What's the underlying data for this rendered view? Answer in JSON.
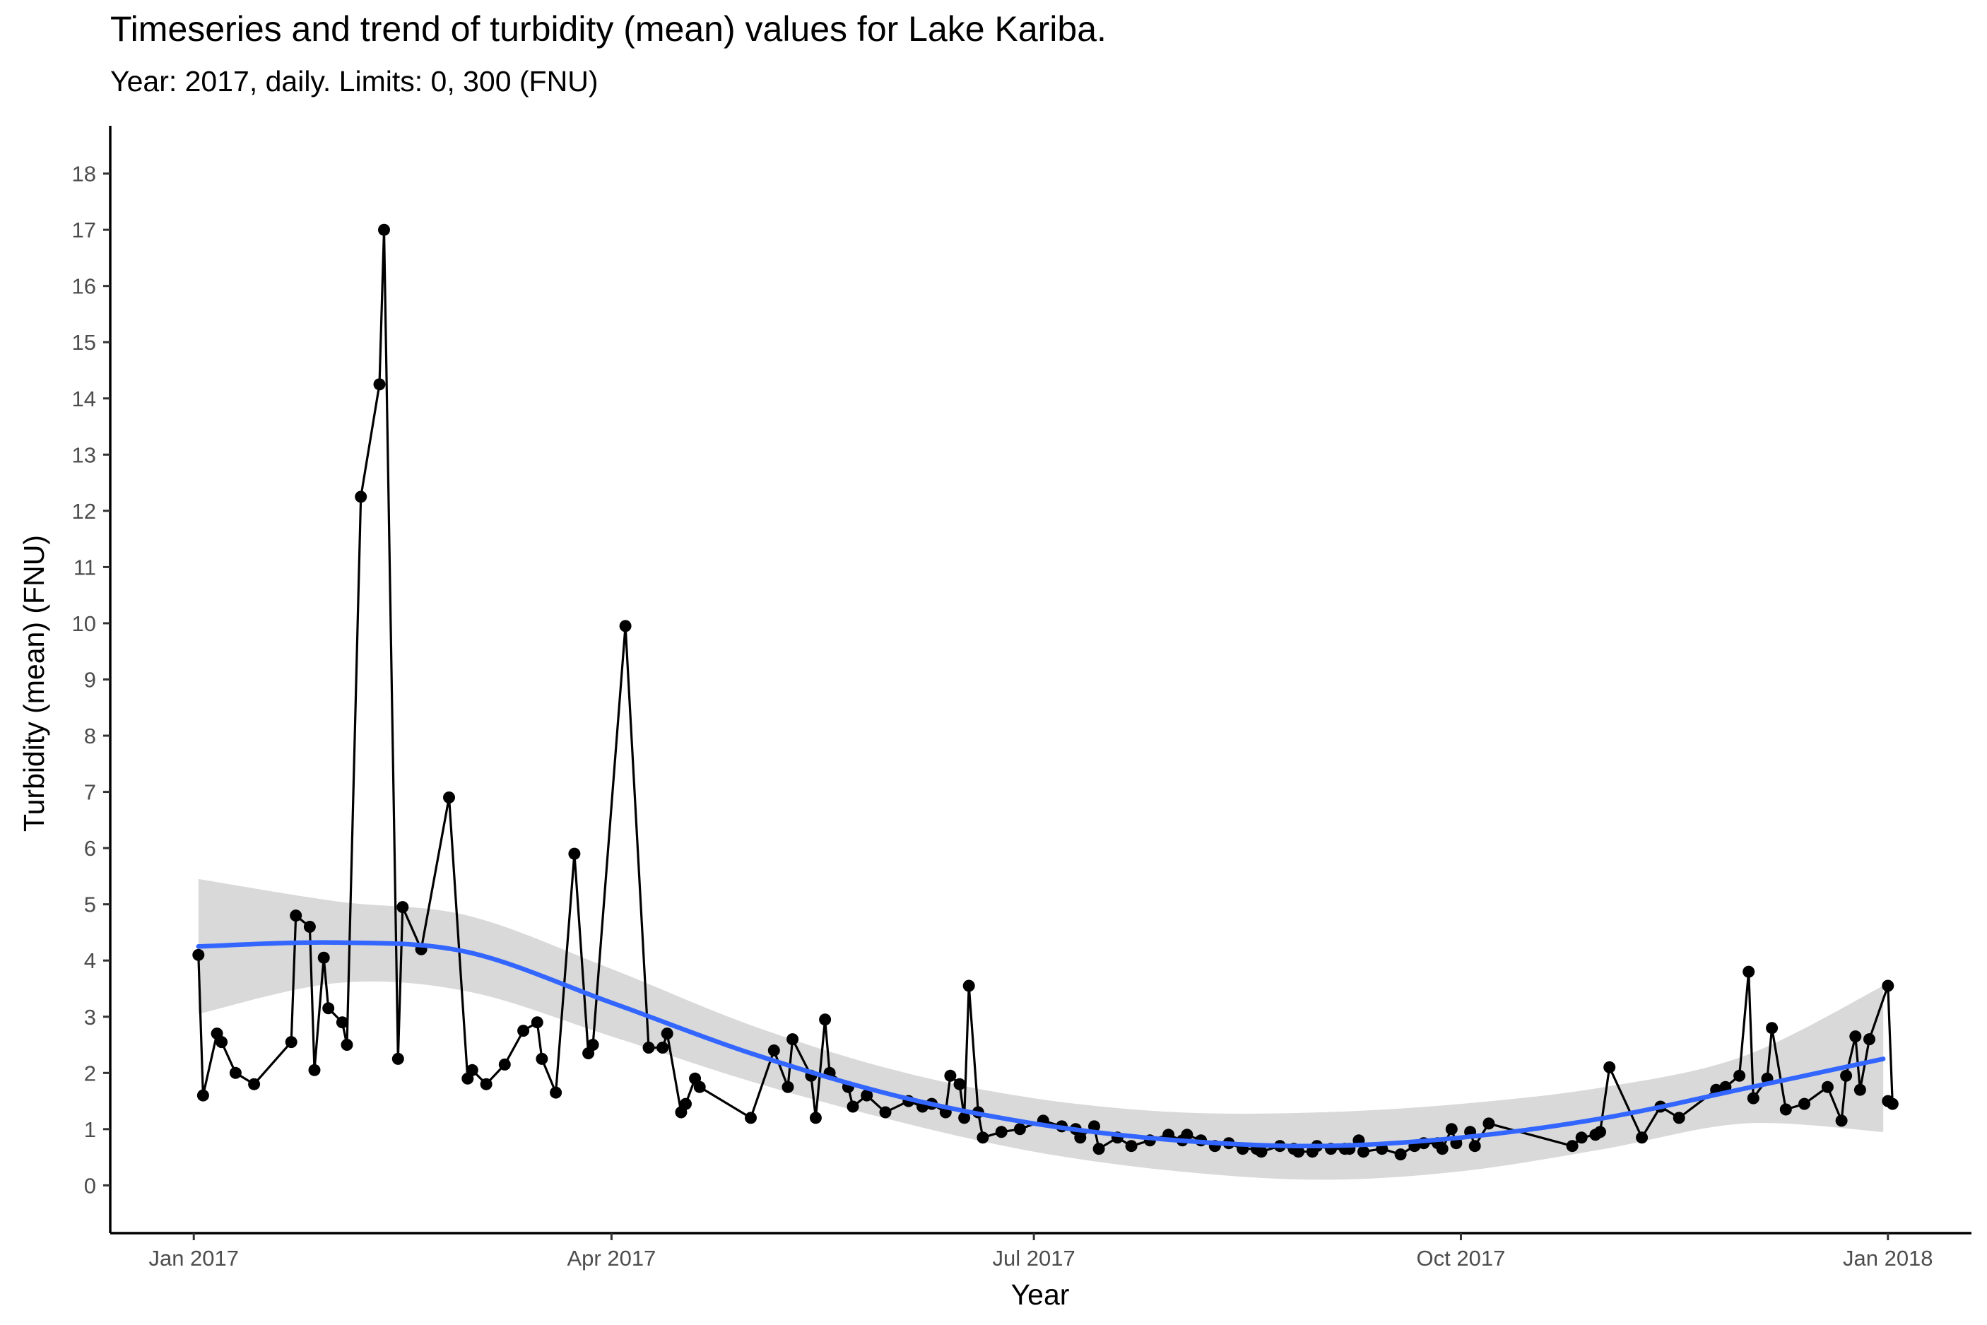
{
  "chart_data": {
    "type": "line",
    "title": "Timeseries and trend of turbidity (mean) values for Lake Kariba.",
    "subtitle": "Year: 2017, daily. Limits: 0, 300 (FNU)",
    "xlabel": "Year",
    "ylabel": "Turbidity (mean) (FNU)",
    "ylim": [
      -0.85,
      18.85
    ],
    "xlim": [
      "2016-12-14",
      "2018-01-19"
    ],
    "y_ticks": [
      0,
      1,
      2,
      3,
      4,
      5,
      6,
      7,
      8,
      9,
      10,
      11,
      12,
      13,
      14,
      15,
      16,
      17,
      18
    ],
    "x_ticks": [
      {
        "date": "2017-01-01",
        "label": "Jan 2017"
      },
      {
        "date": "2017-04-01",
        "label": "Apr 2017"
      },
      {
        "date": "2017-07-01",
        "label": "Jul 2017"
      },
      {
        "date": "2017-10-01",
        "label": "Oct 2017"
      },
      {
        "date": "2018-01-01",
        "label": "Jan 2018"
      }
    ],
    "grid": false,
    "colors": {
      "points": "#000000",
      "line": "#000000",
      "trend": "#3366ff",
      "band": "#d9d9d9"
    },
    "series": [
      {
        "type": "line_points",
        "points": [
          [
            "2017-01-02",
            4.1
          ],
          [
            "2017-01-03",
            1.6
          ],
          [
            "2017-01-06",
            2.7
          ],
          [
            "2017-01-07",
            2.55
          ],
          [
            "2017-01-10",
            2.0
          ],
          [
            "2017-01-14",
            1.8
          ],
          [
            "2017-01-22",
            2.55
          ],
          [
            "2017-01-23",
            4.8
          ],
          [
            "2017-01-26",
            4.6
          ],
          [
            "2017-01-27",
            2.05
          ],
          [
            "2017-01-29",
            4.05
          ],
          [
            "2017-01-30",
            3.15
          ],
          [
            "2017-02-02",
            2.9
          ],
          [
            "2017-02-03",
            2.5
          ],
          [
            "2017-02-06",
            12.25
          ],
          [
            "2017-02-10",
            14.25
          ],
          [
            "2017-02-11",
            17.0
          ],
          [
            "2017-02-14",
            2.25
          ],
          [
            "2017-02-15",
            4.95
          ],
          [
            "2017-02-19",
            4.2
          ],
          [
            "2017-02-25",
            6.9
          ],
          [
            "2017-03-01",
            1.9
          ],
          [
            "2017-03-02",
            2.05
          ],
          [
            "2017-03-05",
            1.8
          ],
          [
            "2017-03-09",
            2.15
          ],
          [
            "2017-03-13",
            2.75
          ],
          [
            "2017-03-16",
            2.9
          ],
          [
            "2017-03-17",
            2.25
          ],
          [
            "2017-03-20",
            1.65
          ],
          [
            "2017-03-24",
            5.9
          ],
          [
            "2017-03-27",
            2.35
          ],
          [
            "2017-03-28",
            2.5
          ],
          [
            "2017-04-04",
            9.95
          ],
          [
            "2017-04-09",
            2.45
          ],
          [
            "2017-04-12",
            2.45
          ],
          [
            "2017-04-13",
            2.7
          ],
          [
            "2017-04-16",
            1.3
          ],
          [
            "2017-04-17",
            1.45
          ],
          [
            "2017-04-19",
            1.9
          ],
          [
            "2017-04-20",
            1.75
          ],
          [
            "2017-05-01",
            1.2
          ],
          [
            "2017-05-06",
            2.4
          ],
          [
            "2017-05-09",
            1.75
          ],
          [
            "2017-05-10",
            2.6
          ],
          [
            "2017-05-14",
            1.95
          ],
          [
            "2017-05-15",
            1.2
          ],
          [
            "2017-05-17",
            2.95
          ],
          [
            "2017-05-18",
            2.0
          ],
          [
            "2017-05-22",
            1.75
          ],
          [
            "2017-05-23",
            1.4
          ],
          [
            "2017-05-26",
            1.6
          ],
          [
            "2017-05-30",
            1.3
          ],
          [
            "2017-06-04",
            1.5
          ],
          [
            "2017-06-07",
            1.4
          ],
          [
            "2017-06-09",
            1.45
          ],
          [
            "2017-06-12",
            1.3
          ],
          [
            "2017-06-13",
            1.95
          ],
          [
            "2017-06-15",
            1.8
          ],
          [
            "2017-06-16",
            1.2
          ],
          [
            "2017-06-17",
            3.55
          ],
          [
            "2017-06-19",
            1.3
          ],
          [
            "2017-06-20",
            0.85
          ],
          [
            "2017-06-24",
            0.95
          ],
          [
            "2017-06-28",
            1.0
          ],
          [
            "2017-07-03",
            1.15
          ],
          [
            "2017-07-07",
            1.05
          ],
          [
            "2017-07-10",
            1.0
          ],
          [
            "2017-07-11",
            0.85
          ],
          [
            "2017-07-14",
            1.05
          ],
          [
            "2017-07-15",
            0.65
          ],
          [
            "2017-07-19",
            0.85
          ],
          [
            "2017-07-22",
            0.7
          ],
          [
            "2017-07-26",
            0.8
          ],
          [
            "2017-07-30",
            0.9
          ],
          [
            "2017-08-02",
            0.8
          ],
          [
            "2017-08-03",
            0.9
          ],
          [
            "2017-08-06",
            0.8
          ],
          [
            "2017-08-09",
            0.7
          ],
          [
            "2017-08-12",
            0.75
          ],
          [
            "2017-08-15",
            0.65
          ],
          [
            "2017-08-18",
            0.65
          ],
          [
            "2017-08-19",
            0.6
          ],
          [
            "2017-08-23",
            0.7
          ],
          [
            "2017-08-26",
            0.65
          ],
          [
            "2017-08-27",
            0.6
          ],
          [
            "2017-08-30",
            0.6
          ],
          [
            "2017-08-31",
            0.7
          ],
          [
            "2017-09-03",
            0.65
          ],
          [
            "2017-09-06",
            0.65
          ],
          [
            "2017-09-07",
            0.65
          ],
          [
            "2017-09-09",
            0.8
          ],
          [
            "2017-09-10",
            0.6
          ],
          [
            "2017-09-14",
            0.65
          ],
          [
            "2017-09-18",
            0.55
          ],
          [
            "2017-09-21",
            0.7
          ],
          [
            "2017-09-23",
            0.75
          ],
          [
            "2017-09-26",
            0.75
          ],
          [
            "2017-09-27",
            0.65
          ],
          [
            "2017-09-29",
            1.0
          ],
          [
            "2017-09-30",
            0.75
          ],
          [
            "2017-10-03",
            0.95
          ],
          [
            "2017-10-04",
            0.7
          ],
          [
            "2017-10-07",
            1.1
          ],
          [
            "2017-10-25",
            0.7
          ],
          [
            "2017-10-27",
            0.85
          ],
          [
            "2017-10-30",
            0.9
          ],
          [
            "2017-10-31",
            0.95
          ],
          [
            "2017-11-02",
            2.1
          ],
          [
            "2017-11-09",
            0.85
          ],
          [
            "2017-11-13",
            1.4
          ],
          [
            "2017-11-17",
            1.2
          ],
          [
            "2017-11-25",
            1.7
          ],
          [
            "2017-11-27",
            1.75
          ],
          [
            "2017-11-30",
            1.95
          ],
          [
            "2017-12-02",
            3.8
          ],
          [
            "2017-12-03",
            1.55
          ],
          [
            "2017-12-06",
            1.9
          ],
          [
            "2017-12-07",
            2.8
          ],
          [
            "2017-12-10",
            1.35
          ],
          [
            "2017-12-14",
            1.45
          ],
          [
            "2017-12-19",
            1.75
          ],
          [
            "2017-12-22",
            1.15
          ],
          [
            "2017-12-23",
            1.95
          ],
          [
            "2017-12-25",
            2.65
          ],
          [
            "2017-12-26",
            1.7
          ],
          [
            "2017-12-28",
            2.6
          ],
          [
            "2018-01-01",
            3.55
          ],
          [
            "2018-01-02",
            1.45
          ],
          [
            "2018-01-01",
            1.5
          ]
        ]
      },
      {
        "type": "trend",
        "points": [
          [
            "2017-01-02",
            4.25
          ],
          [
            "2017-02-01",
            4.32
          ],
          [
            "2017-03-01",
            4.15
          ],
          [
            "2017-04-01",
            3.25
          ],
          [
            "2017-05-01",
            2.35
          ],
          [
            "2017-06-01",
            1.6
          ],
          [
            "2017-07-01",
            1.1
          ],
          [
            "2017-08-01",
            0.8
          ],
          [
            "2017-09-01",
            0.7
          ],
          [
            "2017-10-01",
            0.85
          ],
          [
            "2017-11-01",
            1.2
          ],
          [
            "2017-12-01",
            1.72
          ],
          [
            "2017-12-31",
            2.25
          ]
        ],
        "band_upper": [
          [
            "2017-01-02",
            5.45
          ],
          [
            "2017-02-01",
            5.05
          ],
          [
            "2017-03-01",
            4.8
          ],
          [
            "2017-04-01",
            3.85
          ],
          [
            "2017-05-01",
            2.85
          ],
          [
            "2017-06-01",
            2.05
          ],
          [
            "2017-07-01",
            1.55
          ],
          [
            "2017-08-01",
            1.3
          ],
          [
            "2017-09-01",
            1.3
          ],
          [
            "2017-10-01",
            1.45
          ],
          [
            "2017-11-01",
            1.75
          ],
          [
            "2017-12-01",
            2.3
          ],
          [
            "2017-12-31",
            3.55
          ]
        ],
        "band_lower": [
          [
            "2017-01-02",
            3.05
          ],
          [
            "2017-02-01",
            3.6
          ],
          [
            "2017-03-01",
            3.45
          ],
          [
            "2017-04-01",
            2.65
          ],
          [
            "2017-05-01",
            1.85
          ],
          [
            "2017-06-01",
            1.15
          ],
          [
            "2017-07-01",
            0.6
          ],
          [
            "2017-08-01",
            0.25
          ],
          [
            "2017-09-01",
            0.1
          ],
          [
            "2017-10-01",
            0.25
          ],
          [
            "2017-11-01",
            0.65
          ],
          [
            "2017-12-01",
            1.1
          ],
          [
            "2017-12-31",
            0.95
          ]
        ]
      }
    ]
  }
}
